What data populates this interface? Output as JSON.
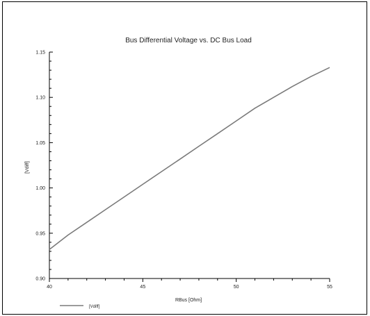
{
  "chart_data": {
    "type": "line",
    "title": "Bus Differential Voltage vs. DC Bus Load",
    "xlabel": "RBus [Ohm]",
    "ylabel": "[Vdiff]",
    "xlim": [
      40,
      55
    ],
    "ylim": [
      0.9,
      1.15
    ],
    "x_ticks": [
      40,
      45,
      50,
      55
    ],
    "x_tick_labels": [
      "40",
      "45",
      "50",
      "55"
    ],
    "y_ticks": [
      0.9,
      0.95,
      1.0,
      1.05,
      1.1,
      1.15
    ],
    "y_tick_labels": [
      "0.90",
      "0.95",
      "1.00",
      "1.05",
      "1.10",
      "1.15"
    ],
    "grid": false,
    "legend_position": "bottom-left",
    "series": [
      {
        "name": "[Vdiff]",
        "color": "#7a7a7a",
        "x": [
          40,
          41,
          42,
          43,
          44,
          45,
          46,
          47,
          48,
          49,
          50,
          51,
          52,
          53,
          54,
          55
        ],
        "y": [
          0.932,
          0.948,
          0.962,
          0.976,
          0.99,
          1.004,
          1.018,
          1.032,
          1.046,
          1.06,
          1.074,
          1.088,
          1.1,
          1.112,
          1.123,
          1.133
        ]
      }
    ]
  }
}
